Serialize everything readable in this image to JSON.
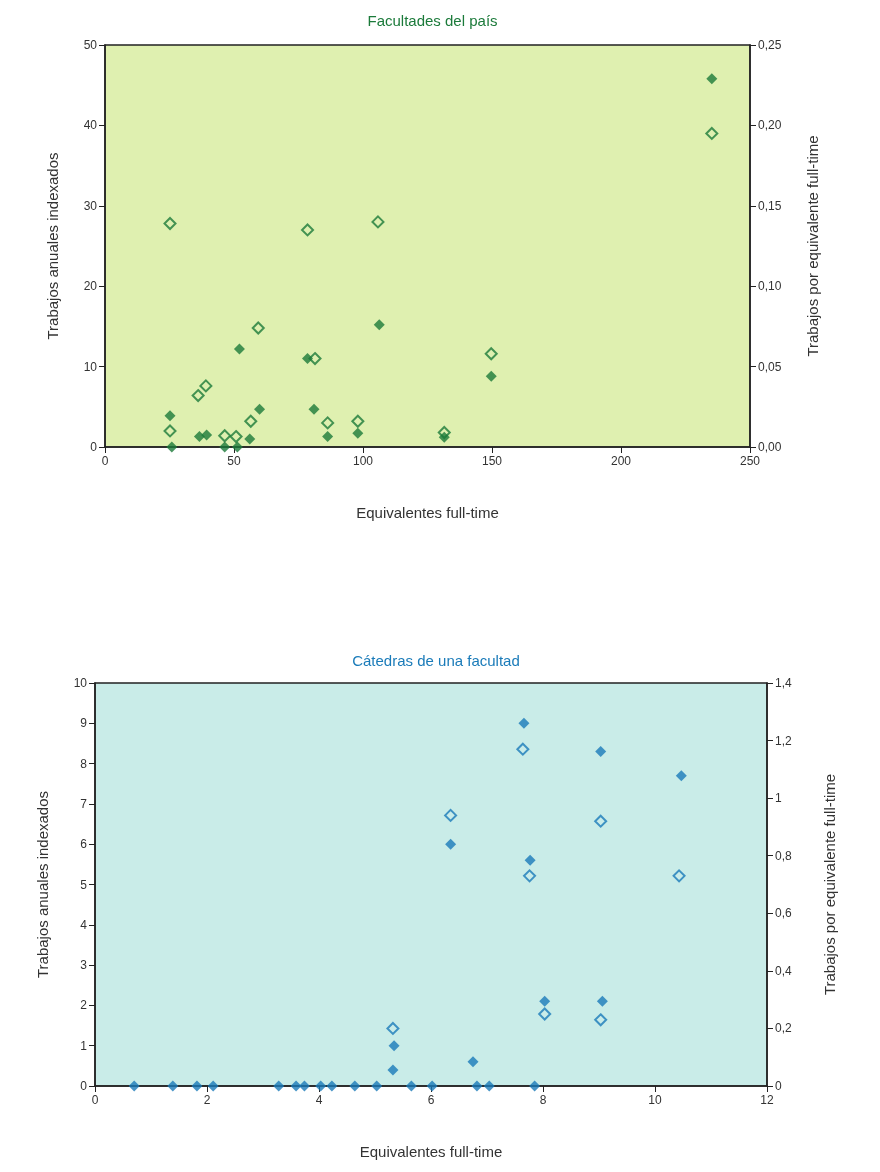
{
  "chart_data": [
    {
      "type": "scatter",
      "title": "Facultades del país",
      "xlabel": "Equivalentes full-time",
      "ylabel": "Trabajos anuales indexados",
      "y2label": "Trabajos por equivalente full-time",
      "xlim": [
        0,
        250
      ],
      "xticks": [
        0,
        50,
        100,
        150,
        200,
        250
      ],
      "ylim": [
        0,
        50
      ],
      "yticks": [
        0,
        10,
        20,
        30,
        40,
        50
      ],
      "y2lim": [
        0,
        0.25
      ],
      "y2ticks": [
        {
          "value": 0,
          "label": "0,00"
        },
        {
          "value": 0.05,
          "label": "0,05"
        },
        {
          "value": 0.1,
          "label": "0,10"
        },
        {
          "value": 0.15,
          "label": "0,15"
        },
        {
          "value": 0.2,
          "label": "0,20"
        },
        {
          "value": 0.25,
          "label": "0,25"
        }
      ],
      "grid": false,
      "marker": "diamond",
      "series": [
        {
          "color": "#1b7a3a",
          "x": [
            235.2,
            25.2,
            25.9,
            36.6,
            39.4,
            46.4,
            51.3,
            52.1,
            56.1,
            59.9,
            78.5,
            81.0,
            86.3,
            98.0,
            106.3,
            131.5,
            149.7
          ],
          "values": [
            45.8,
            3.9,
            0,
            1.3,
            1.5,
            0,
            0,
            12.2,
            1.0,
            4.7,
            11.0,
            4.7,
            1.3,
            1.7,
            15.2,
            1.2,
            8.8
          ]
        },
        {
          "color": "#1b7a3a",
          "axis": "y2",
          "x": [
            235.2,
            25.2,
            78.5,
            105.8,
            59.4,
            81.4,
            149.7,
            36.1,
            39.1,
            25.2,
            46.4,
            50.8,
            56.5,
            86.3,
            98.0,
            131.5
          ],
          "values": [
            0.195,
            0.139,
            0.135,
            0.14,
            0.074,
            0.055,
            0.058,
            0.032,
            0.038,
            0.01,
            0.007,
            0.0065,
            0.016,
            0.015,
            0.016,
            0.009
          ]
        }
      ]
    },
    {
      "type": "scatter",
      "title": "Cátedras de una facultad",
      "xlabel": "Equivalentes full-time",
      "ylabel": "Trabajos anuales indexados",
      "y2label": "Trabajos por equivalente full-time",
      "xlim": [
        0,
        12
      ],
      "xticks": [
        0,
        2,
        4,
        6,
        8,
        10,
        12
      ],
      "ylim": [
        0,
        10
      ],
      "yticks": [
        0,
        1,
        2,
        3,
        4,
        5,
        6,
        7,
        8,
        9,
        10
      ],
      "y2lim": [
        0,
        1.4
      ],
      "y2ticks": [
        0,
        {
          "value": 0.2,
          "label": "0,2"
        },
        {
          "value": 0.4,
          "label": "0,4"
        },
        {
          "value": 0.6,
          "label": "0,6"
        },
        {
          "value": 0.8,
          "label": "0,8"
        },
        1,
        {
          "value": 1.2,
          "label": "1,2"
        },
        {
          "value": 1.4,
          "label": "1,4"
        }
      ],
      "grid": false,
      "marker": "diamond",
      "series": [
        {
          "color": "#1a7bb9",
          "x": [
            7.66,
            9.03,
            10.47,
            6.35,
            7.77,
            8.03,
            9.06,
            6.75,
            5.34,
            5.32,
            0.7,
            1.39,
            1.82,
            2.11,
            3.28,
            3.59,
            3.74,
            4.03,
            4.23,
            4.64,
            5.03,
            5.65,
            6.02,
            6.82,
            7.04,
            7.85
          ],
          "values": [
            9.0,
            8.3,
            7.7,
            6.0,
            5.6,
            2.1,
            2.1,
            0.6,
            1.0,
            0.4,
            0,
            0,
            0,
            0,
            0,
            0,
            0,
            0,
            0,
            0,
            0,
            0,
            0,
            0,
            0,
            0
          ]
        },
        {
          "color": "#1a7bb9",
          "axis": "y2",
          "x": [
            7.64,
            6.35,
            9.03,
            7.76,
            10.43,
            8.03,
            9.03,
            5.32
          ],
          "values": [
            1.17,
            0.94,
            0.92,
            0.73,
            0.73,
            0.25,
            0.23,
            0.2
          ]
        }
      ]
    }
  ]
}
